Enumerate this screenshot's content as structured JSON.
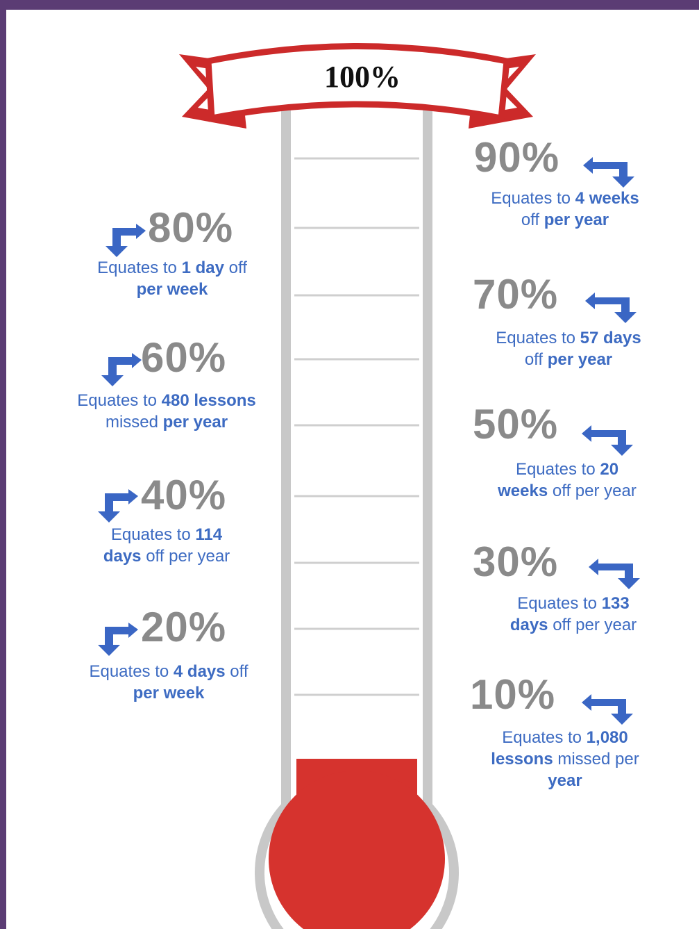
{
  "thermometer": {
    "banner_label": "100%",
    "fill_level_percent": 10,
    "fill_color": "#d6332e",
    "tube_color": "#c8c8c8",
    "banner_color": "#cc2a2a"
  },
  "colors": {
    "percent_text": "#8a8a8a",
    "description_text": "#3d6bc2",
    "arrow": "#3a66c4",
    "background": "#5b3c74"
  },
  "milestones": [
    {
      "percent": "90%",
      "line1": [
        "Equates to ",
        "4 weeks",
        ""
      ],
      "line2": [
        "off ",
        "per year",
        ""
      ]
    },
    {
      "percent": "80%",
      "line1": [
        "Equates to ",
        "1 day",
        " off"
      ],
      "line2": [
        "",
        "per week",
        ""
      ]
    },
    {
      "percent": "70%",
      "line1": [
        "Equates to ",
        "57 days",
        ""
      ],
      "line2": [
        "off ",
        "per year",
        ""
      ]
    },
    {
      "percent": "60%",
      "line1": [
        "Equates to ",
        "480 lessons",
        ""
      ],
      "line2": [
        "missed ",
        "per year",
        ""
      ]
    },
    {
      "percent": "50%",
      "line1": [
        "Equates to ",
        "20",
        ""
      ],
      "line2": [
        "",
        "weeks",
        " off per year"
      ]
    },
    {
      "percent": "40%",
      "line1": [
        "Equates to ",
        "114",
        ""
      ],
      "line2": [
        "",
        "days",
        " off per year"
      ]
    },
    {
      "percent": "30%",
      "line1": [
        "Equates to ",
        "133",
        ""
      ],
      "line2": [
        "",
        "days",
        " off per year"
      ]
    },
    {
      "percent": "20%",
      "line1": [
        "Equates to ",
        "4 days",
        " off"
      ],
      "line2": [
        "",
        "per week",
        ""
      ]
    },
    {
      "percent": "10%",
      "line1": [
        "Equates to ",
        "1,080",
        ""
      ],
      "line2": [
        "",
        "lessons",
        " missed per"
      ],
      "line3": [
        "",
        "year",
        ""
      ]
    }
  ]
}
